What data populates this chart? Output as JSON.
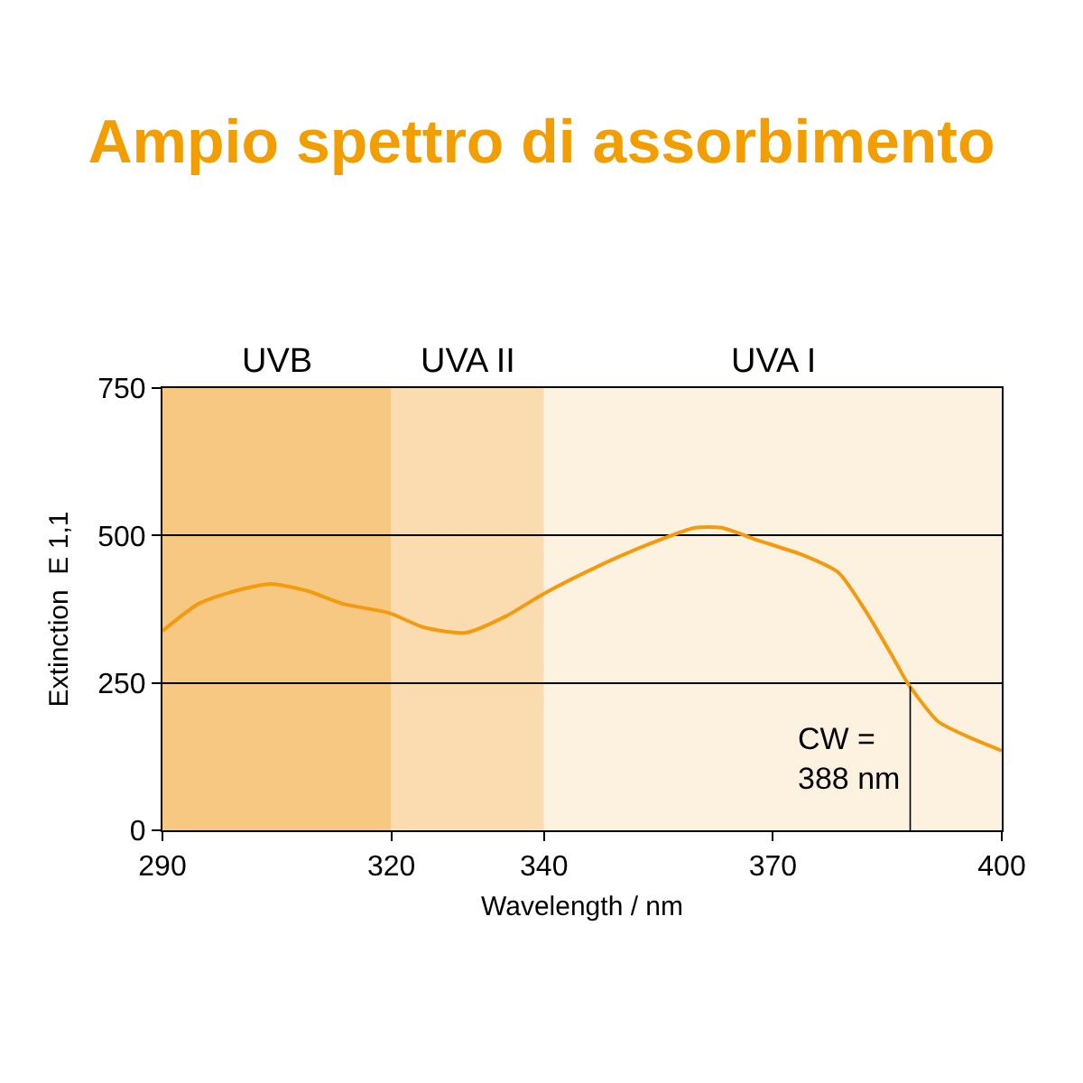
{
  "chart_data": {
    "type": "line",
    "title": "Ampio spettro di assorbimento",
    "xlabel": "Wavelength / nm",
    "ylabel": "Extinction  E 1,1",
    "x": [
      290,
      294.7,
      299.5,
      304.2,
      309,
      313.7,
      319.6,
      324.3,
      329.7,
      335,
      339.8,
      346.8,
      353.9,
      359.8,
      363.3,
      368,
      373.9,
      378.6,
      382.3,
      385.8,
      387.7,
      391.7,
      396.4,
      400
    ],
    "series": [
      {
        "color": "#f39a0e",
        "values": [
          338,
          384,
          406,
          418,
          406,
          384,
          369,
          344,
          335,
          363,
          400,
          446,
          486,
          513,
          513,
          492,
          467,
          437,
          369,
          292,
          249,
          184,
          154,
          135
        ]
      }
    ],
    "xlim": [
      290,
      400
    ],
    "xticks": [
      290,
      320,
      340,
      370,
      400
    ],
    "ylim": [
      0,
      750
    ],
    "yticks": [
      0,
      250,
      500,
      750
    ],
    "grid": "y",
    "bands": [
      {
        "axis": "x",
        "from": 290,
        "to": 320,
        "label": "UVB",
        "color": "#f7c882"
      },
      {
        "axis": "x",
        "from": 320,
        "to": 340,
        "label": "UVA II",
        "color": "#fbdcb0"
      },
      {
        "axis": "x",
        "from": 340,
        "to": 400,
        "label": "UVA I",
        "color": "#fdf1e0"
      }
    ],
    "ref_lines": [
      {
        "axis": "x",
        "value": 388,
        "label": "CW =\n388 nm"
      }
    ]
  }
}
